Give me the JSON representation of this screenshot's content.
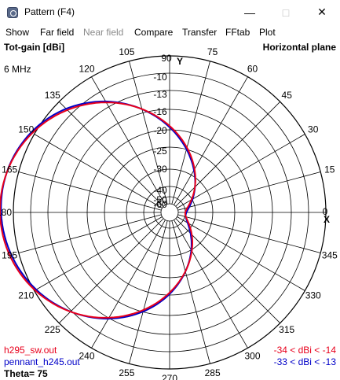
{
  "window": {
    "title": "Pattern   (F4)",
    "app_icon": "pattern-app-icon",
    "controls": {
      "minimize": "—",
      "maximize": "□",
      "close": "✕"
    }
  },
  "menu": [
    {
      "label": "Show",
      "enabled": true
    },
    {
      "label": "Far field",
      "enabled": true
    },
    {
      "label": "Near field",
      "enabled": false
    },
    {
      "label": "Compare",
      "enabled": true
    },
    {
      "label": "Transfer",
      "enabled": true
    },
    {
      "label": "FFtab",
      "enabled": true
    },
    {
      "label": "Plot",
      "enabled": true
    }
  ],
  "plot": {
    "top_left_label": "Tot-gain [dBi]",
    "top_right_label": "Horizontal plane",
    "frequency_label": "6 MHz",
    "y_axis_label": "Y",
    "x_axis_marker": "X",
    "theta_label": "Theta= 75",
    "grid_color": "#000000",
    "angle_labels": [
      "0",
      "15",
      "30",
      "45",
      "60",
      "75",
      "90",
      "105",
      "120",
      "135",
      "150",
      "165",
      "180",
      "195",
      "210",
      "225",
      "240",
      "255",
      "270",
      "285",
      "300",
      "315",
      "330",
      "345"
    ],
    "ring_labels": [
      "10",
      "13",
      "16",
      "20",
      "25",
      "30",
      "40",
      "50",
      "60"
    ],
    "legend": [
      {
        "file": "h295_sw.out",
        "range": "-34 < dBi < -14",
        "color": "#e8001c"
      },
      {
        "file": "pennant_h245.out",
        "range": "-33 < dBi < -13",
        "color": "#0000c8"
      }
    ]
  }
}
